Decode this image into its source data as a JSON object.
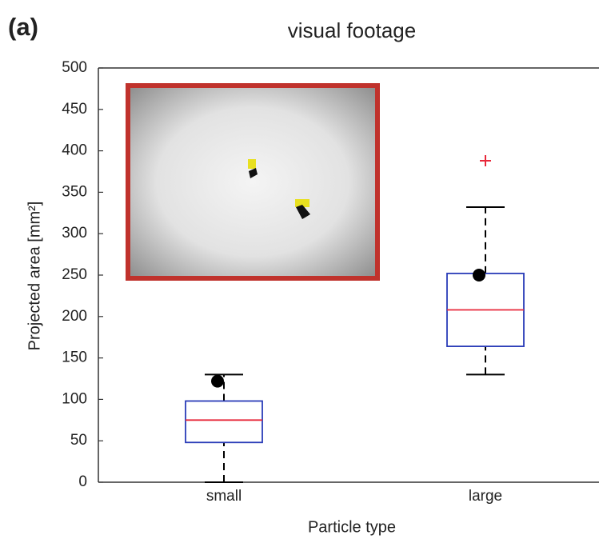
{
  "chart_data": {
    "type": "box",
    "panel_label": "(a)",
    "title": "visual footage",
    "x_label": "Particle type",
    "y_label": "Projected area [mm²]",
    "categories": [
      "small",
      "large"
    ],
    "boxes": [
      {
        "low": 0,
        "q1": 48,
        "median": 75,
        "q3": 98,
        "high": 130,
        "outliers": []
      },
      {
        "low": 130,
        "q1": 164,
        "median": 208,
        "q3": 252,
        "high": 332,
        "outliers": [
          388
        ]
      }
    ],
    "points": [
      122,
      250
    ],
    "box_color": "#2a3cb8",
    "median_color": "#e8283a",
    "outlier_color": "#e8283a",
    "ylim": [
      0,
      500
    ],
    "yticks": [
      0,
      50,
      100,
      150,
      200,
      250,
      300,
      350,
      400,
      450,
      500
    ]
  }
}
